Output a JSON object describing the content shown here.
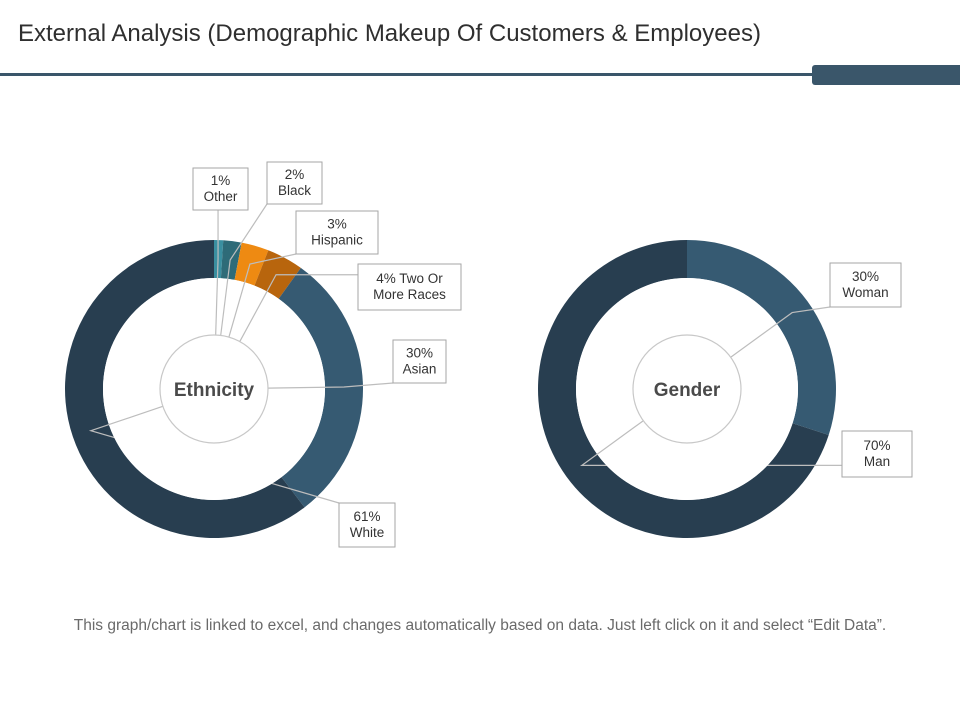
{
  "title": "External Analysis (Demographic Makeup Of Customers & Employees)",
  "footnote": "This graph/chart is linked to excel, and changes automatically based on data. Just left click on it and select “Edit Data”.",
  "chart_data": [
    {
      "type": "pie",
      "title": "",
      "center_label": "Ethnicity",
      "slices": [
        {
          "label": "Other",
          "value": 1,
          "value_label": "1%",
          "color": "#3a8fa0",
          "lines": [
            "1%",
            "Other"
          ]
        },
        {
          "label": "Black",
          "value": 2,
          "value_label": "2%",
          "color": "#2e6b78",
          "lines": [
            "2%",
            "Black"
          ]
        },
        {
          "label": "Hispanic",
          "value": 3,
          "value_label": "3%",
          "color": "#ee8a12",
          "lines": [
            "3%",
            "Hispanic"
          ]
        },
        {
          "label": "Two Or More Races",
          "value": 4,
          "value_label": "4% Two Or More Races",
          "color": "#b8650d",
          "lines": [
            "4% Two Or",
            "More Races"
          ]
        },
        {
          "label": "Asian",
          "value": 30,
          "value_label": "30%",
          "color": "#365a72",
          "lines": [
            "30%",
            "Asian"
          ]
        },
        {
          "label": "White",
          "value": 61,
          "value_label": "61%",
          "color": "#283e50",
          "lines": [
            "61%",
            "White"
          ]
        }
      ]
    },
    {
      "type": "pie",
      "title": "",
      "center_label": "Gender",
      "slices": [
        {
          "label": "Woman",
          "value": 30,
          "value_label": "30%",
          "color": "#365a72",
          "lines": [
            "30%",
            "Woman"
          ]
        },
        {
          "label": "Man",
          "value": 70,
          "value_label": "70%",
          "color": "#283e50",
          "lines": [
            "70%",
            "Man"
          ]
        }
      ]
    }
  ]
}
